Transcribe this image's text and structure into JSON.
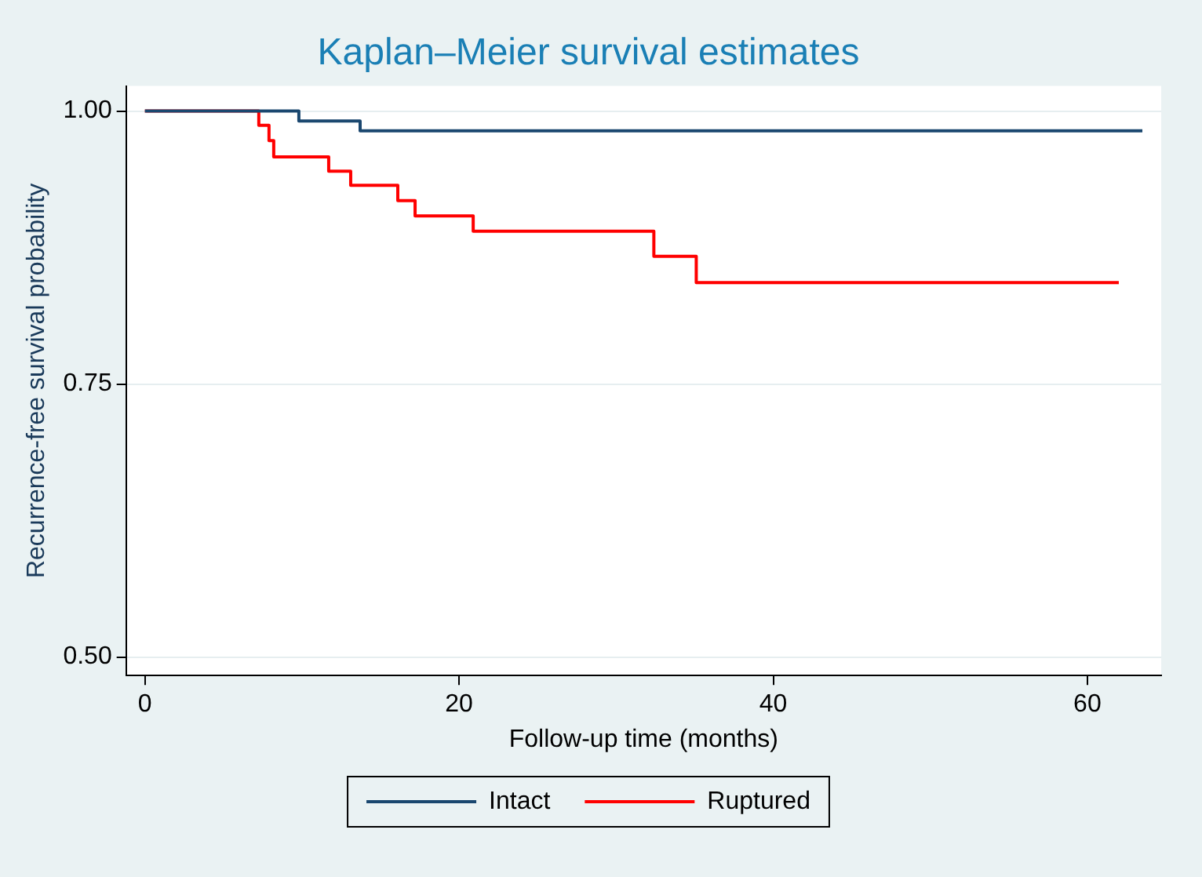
{
  "chart_data": {
    "type": "step",
    "title": "Kaplan–Meier survival estimates",
    "xlabel": "Follow-up time (months)",
    "ylabel": "Recurrence-free survival probability",
    "series": [
      {
        "name": "Intact",
        "color": "#1a476f",
        "x": [
          0,
          9.8,
          13.7,
          63.5
        ],
        "values": [
          1,
          0.991,
          0.982,
          0.982
        ]
      },
      {
        "name": "Ruptured",
        "color": "#ff0000",
        "x": [
          0,
          7.25,
          7.9,
          8.2,
          11.7,
          13.1,
          16.1,
          17.2,
          20.9,
          32.4,
          35.1,
          62.0
        ],
        "values": [
          1,
          0.987,
          0.973,
          0.958,
          0.945,
          0.932,
          0.918,
          0.904,
          0.89,
          0.867,
          0.843,
          0.843
        ]
      }
    ],
    "xlim": [
      -1.2,
      64.7
    ],
    "xticks": [
      0,
      20,
      40,
      60
    ],
    "ylim": [
      0.483,
      1.023
    ],
    "yticks": [
      {
        "value": 0.5,
        "label": "0.50"
      },
      {
        "value": 0.75,
        "label": "0.75"
      },
      {
        "value": 1,
        "label": "1.00"
      }
    ],
    "grid": "y",
    "legend": "bottom",
    "marker": "none",
    "line_style": "solid"
  }
}
